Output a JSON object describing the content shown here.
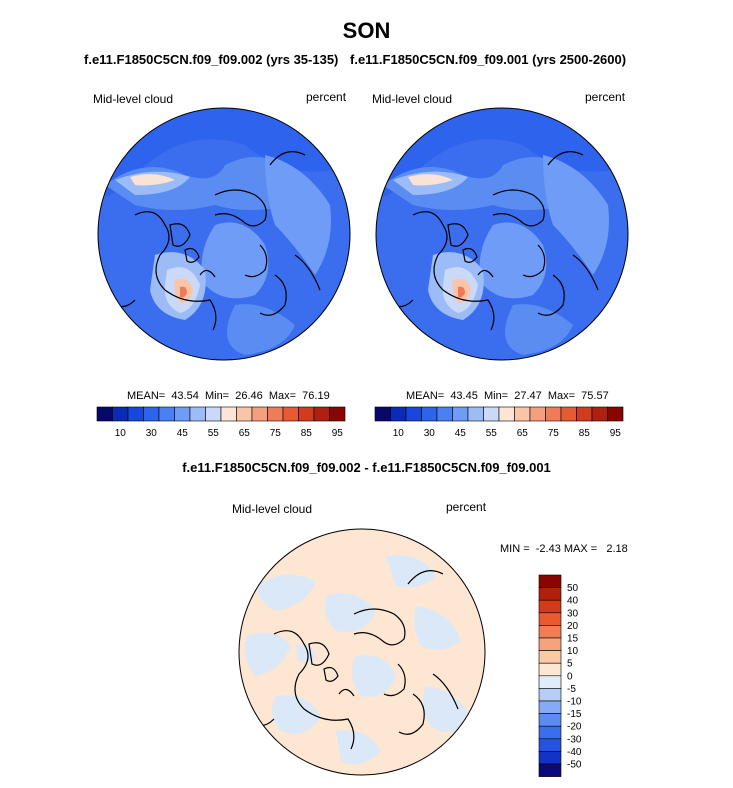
{
  "title": "SON",
  "top_left": {
    "subtitle": "f.e11.F1850C5CN.f09_f09.002 (yrs 35-135)",
    "variable": "Mid-level cloud",
    "units": "percent",
    "stats": "MEAN=  43.54  Min=  26.46  Max=  76.19"
  },
  "top_right": {
    "subtitle": "f.e11.F1850C5CN.f09_f09.001 (yrs 2500-2600)",
    "variable": "Mid-level cloud",
    "units": "percent",
    "stats": "MEAN=  43.45  Min=  27.47  Max=  75.57"
  },
  "bottom": {
    "subtitle": "f.e11.F1850C5CN.f09_f09.002 - f.e11.F1850C5CN.f09_f09.001",
    "variable": "Mid-level cloud",
    "units": "percent",
    "stats": "MIN =  -2.43 MAX =   2.18"
  },
  "colorbar_top": {
    "colors": [
      "#08086b",
      "#0a2ab8",
      "#1846e0",
      "#2e63ee",
      "#4a80f4",
      "#6f9cf6",
      "#9cbcf7",
      "#c9d9f7",
      "#fbe6d6",
      "#f9c4a8",
      "#f4a07f",
      "#ef7c58",
      "#e85a36",
      "#d33b1e",
      "#b21f10",
      "#880500"
    ],
    "tick_labels": [
      "10",
      "30",
      "45",
      "55",
      "65",
      "75",
      "85",
      "95"
    ]
  },
  "colorbar_diff": {
    "colors": [
      "#0a0a7a",
      "#1232c8",
      "#2452e2",
      "#3a6eee",
      "#5a8cf2",
      "#86abf4",
      "#b6cdf6",
      "#e2ecf9",
      "#fde6d2",
      "#f9c9a8",
      "#f5a37c",
      "#f07e52",
      "#e85a30",
      "#d43a1a",
      "#b2200c",
      "#8a0500"
    ],
    "tick_labels": [
      "50",
      "40",
      "30",
      "20",
      "15",
      "10",
      "5",
      "0",
      "-5",
      "-10",
      "-15",
      "-20",
      "-30",
      "-40",
      "-50"
    ]
  }
}
